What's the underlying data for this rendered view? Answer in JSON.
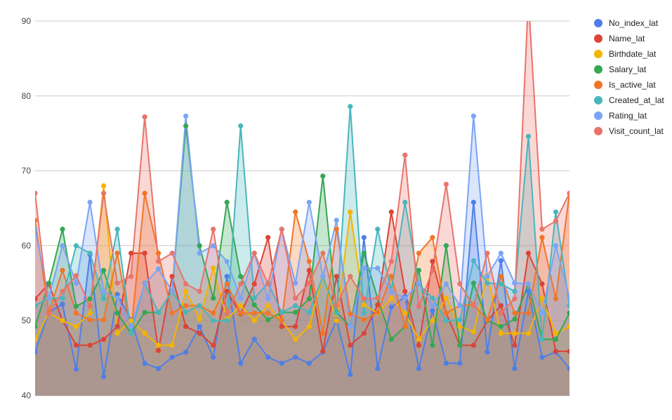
{
  "chart_data": {
    "type": "area",
    "title": "",
    "xlabel": "",
    "ylabel": "",
    "ylim": [
      40,
      90
    ],
    "yticks": [
      40,
      50,
      60,
      70,
      80,
      90
    ],
    "ytick_labels": [
      "40",
      "50",
      "60",
      "70",
      "80",
      "90"
    ],
    "grid": true,
    "legend_position": "right",
    "series": [
      {
        "name": "No_index_lat",
        "color": "#4e7fe8",
        "values": [
          45.8,
          51.1,
          52.2,
          43.5,
          58.8,
          42.5,
          53.5,
          50.1,
          44.3,
          43.6,
          45.1,
          45.8,
          49.2,
          45.1,
          55.9,
          44.3,
          47.5,
          45.1,
          44.3,
          45.1,
          44.3,
          45.8,
          50.1,
          42.8,
          61.1,
          43.6,
          51.8,
          53.2,
          43.6,
          51.3,
          44.3,
          44.3,
          65.8,
          45.8,
          58.0,
          43.6,
          53.9,
          45.1,
          45.8,
          43.6
        ]
      },
      {
        "name": "Name_lat",
        "color": "#dc4437",
        "values": [
          52.9,
          54.9,
          50.0,
          46.7,
          46.7,
          47.5,
          49.2,
          59.0,
          59.0,
          46.0,
          55.9,
          49.2,
          48.3,
          46.7,
          53.9,
          50.9,
          54.9,
          61.1,
          49.2,
          49.2,
          56.7,
          45.9,
          55.9,
          46.7,
          48.3,
          52.1,
          64.5,
          53.9,
          46.7,
          57.9,
          51.0,
          46.7,
          46.7,
          50.0,
          52.0,
          46.7,
          59.0,
          54.9,
          45.9,
          45.9
        ]
      },
      {
        "name": "Birthdate_lat",
        "color": "#f4b400",
        "values": [
          47.5,
          51.0,
          50.0,
          49.2,
          51.0,
          68.0,
          48.3,
          50.0,
          48.3,
          46.7,
          46.7,
          53.9,
          50.2,
          57.0,
          50.2,
          52.0,
          50.0,
          52.0,
          50.0,
          47.5,
          49.2,
          55.9,
          50.0,
          64.5,
          52.1,
          51.0,
          53.0,
          51.0,
          47.5,
          50.0,
          53.0,
          49.2,
          48.5,
          56.0,
          48.3,
          48.3,
          48.3,
          53.0,
          48.3,
          49.2
        ]
      },
      {
        "name": "Salary_lat",
        "color": "#34a853",
        "values": [
          49.2,
          55.0,
          62.2,
          51.9,
          52.9,
          56.7,
          51.0,
          48.3,
          51.1,
          51.1,
          53.9,
          76.0,
          60.0,
          53.0,
          65.8,
          55.9,
          52.1,
          50.1,
          51.1,
          51.1,
          52.9,
          69.3,
          51.1,
          49.2,
          59.0,
          53.0,
          47.5,
          49.2,
          56.7,
          46.7,
          60.0,
          46.7,
          55.0,
          50.0,
          49.2,
          50.2,
          54.9,
          47.5,
          47.5,
          51.0
        ]
      },
      {
        "name": "Is_active_lat",
        "color": "#f07627",
        "values": [
          63.4,
          51.1,
          56.7,
          51.0,
          50.1,
          50.1,
          59.0,
          48.3,
          67.0,
          59.0,
          51.0,
          52.0,
          52.0,
          51.0,
          54.9,
          51.0,
          51.0,
          51.0,
          50.0,
          64.5,
          57.9,
          48.3,
          62.2,
          50.9,
          50.1,
          51.1,
          55.9,
          49.2,
          59.0,
          61.1,
          51.0,
          52.0,
          52.1,
          50.1,
          55.9,
          51.0,
          51.0,
          61.1,
          52.9,
          67.0
        ]
      },
      {
        "name": "Created_at_lat",
        "color": "#48b6bd",
        "values": [
          52.0,
          53.0,
          53.0,
          60.0,
          59.0,
          52.9,
          62.2,
          48.3,
          55.0,
          51.1,
          53.9,
          51.1,
          52.0,
          50.0,
          50.0,
          76.0,
          53.0,
          55.0,
          51.1,
          52.0,
          51.1,
          55.9,
          51.0,
          78.6,
          51.0,
          62.2,
          53.9,
          65.8,
          54.9,
          53.0,
          50.0,
          50.1,
          58.0,
          55.0,
          54.9,
          53.9,
          74.6,
          47.5,
          64.5,
          52.0
        ]
      },
      {
        "name": "Rating_lat",
        "color": "#7ba4f5",
        "values": [
          62.2,
          53.0,
          60.0,
          55.0,
          65.8,
          53.9,
          53.0,
          49.2,
          54.9,
          56.9,
          53.9,
          77.3,
          59.0,
          60.0,
          57.9,
          53.0,
          59.0,
          52.9,
          62.2,
          55.0,
          65.8,
          55.9,
          63.4,
          49.2,
          57.0,
          57.0,
          53.9,
          53.0,
          55.0,
          52.0,
          54.9,
          52.0,
          77.3,
          55.9,
          59.0,
          55.0,
          54.9,
          51.0,
          60.0,
          53.0
        ]
      },
      {
        "name": "Visit_count_lat",
        "color": "#e8746a",
        "values": [
          67.0,
          50.9,
          53.9,
          56.0,
          51.9,
          67.0,
          55.0,
          55.9,
          77.2,
          57.9,
          59.0,
          54.9,
          53.9,
          62.2,
          50.9,
          54.9,
          59.0,
          54.9,
          62.2,
          53.0,
          55.0,
          59.0,
          52.0,
          55.9,
          52.9,
          53.0,
          57.9,
          72.1,
          51.9,
          56.7,
          68.2,
          54.9,
          52.0,
          59.0,
          51.0,
          52.9,
          93.0,
          62.2,
          63.3,
          67.0
        ]
      }
    ]
  }
}
